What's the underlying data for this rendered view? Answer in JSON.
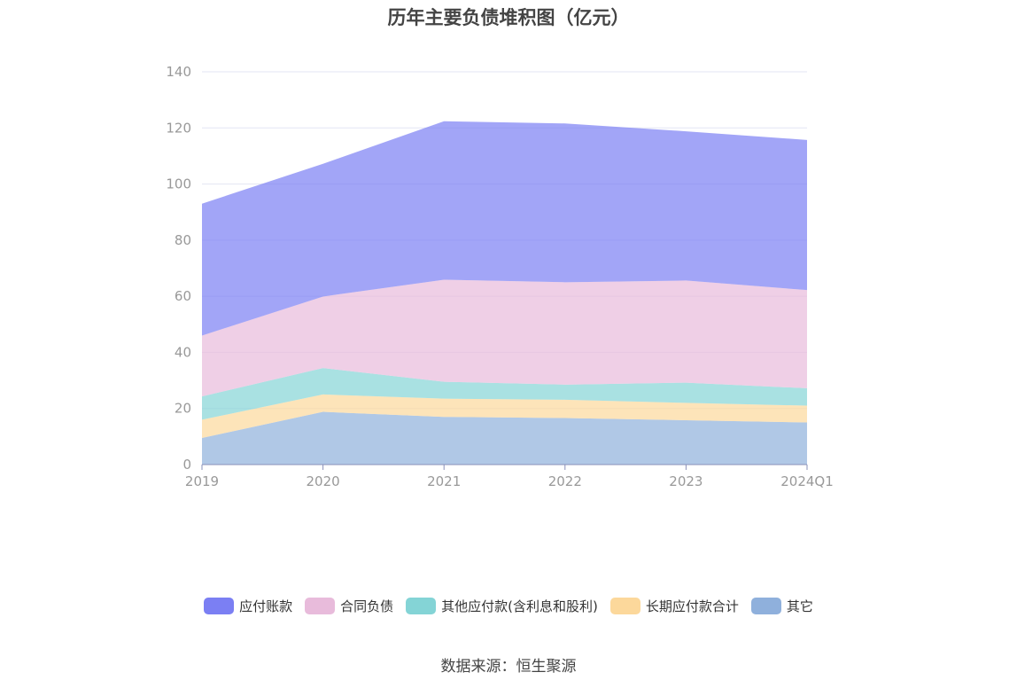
{
  "source_text": "数据来源：恒生聚源",
  "chart_data": {
    "type": "area",
    "stacked": true,
    "title": "历年主要负债堆积图（亿元）",
    "xlabel": "",
    "ylabel": "",
    "categories": [
      "2019",
      "2020",
      "2021",
      "2022",
      "2023",
      "2024Q1"
    ],
    "ylim": [
      0,
      140
    ],
    "yticks": [
      0,
      20,
      40,
      60,
      80,
      100,
      120,
      140
    ],
    "grid": true,
    "legend_position": "bottom",
    "series": [
      {
        "name": "其它",
        "color": "#8fb0dc",
        "values": [
          9.5,
          18.8,
          17.0,
          16.6,
          15.8,
          15.0
        ]
      },
      {
        "name": "长期应付款合计",
        "color": "#fcd89b",
        "values": [
          6.5,
          6.2,
          6.5,
          6.5,
          6.2,
          6.0
        ]
      },
      {
        "name": "其他应付款(含利息和股利)",
        "color": "#84d4d6",
        "values": [
          8.3,
          9.4,
          6.0,
          5.4,
          7.2,
          6.2
        ]
      },
      {
        "name": "合同负债",
        "color": "#e8bbdb",
        "values": [
          21.7,
          25.5,
          36.4,
          36.5,
          36.4,
          35.0
        ]
      },
      {
        "name": "应付账款",
        "color": "#7b7ff3",
        "values": [
          47.0,
          47.3,
          56.5,
          56.6,
          53.2,
          53.5
        ]
      }
    ]
  }
}
